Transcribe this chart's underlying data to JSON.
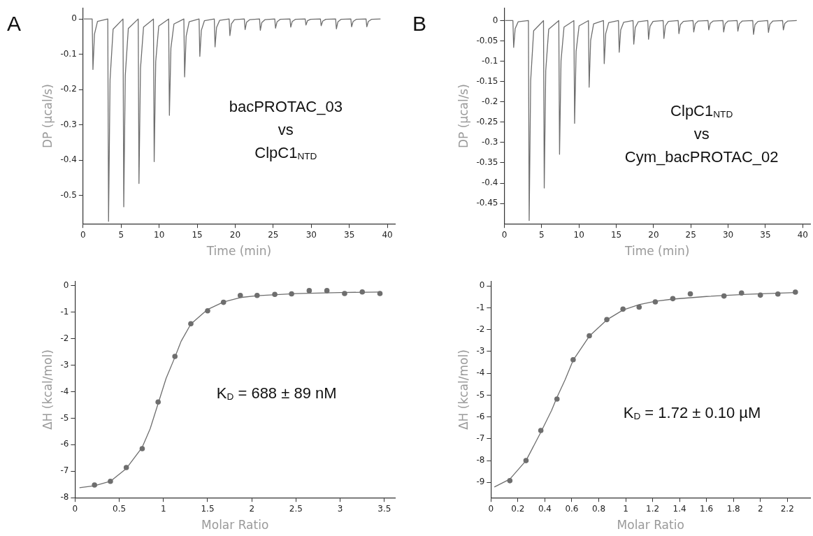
{
  "chart_data": [
    {
      "type": "line",
      "xlabel": "Time (min)",
      "ylabel": "DP (µcal/s)",
      "xlim": [
        0,
        41
      ],
      "ylim": [
        -0.58,
        0.03
      ],
      "xticks": [
        0,
        5,
        10,
        15,
        20,
        25,
        30,
        35,
        40
      ],
      "yticks": [
        -0.5,
        -0.4,
        -0.3,
        -0.2,
        -0.1,
        0
      ],
      "grid": false,
      "legend": false,
      "annotations": [
        "A",
        "bacPROTAC_03\nvs\nClpC1$_{NTD}$"
      ],
      "series": [
        {
          "color": "#6e6e6e",
          "x": [
            0.1,
            1.2,
            1.3,
            1.5,
            1.9,
            3.25,
            3.35,
            3.55,
            3.95,
            5.25,
            5.35,
            5.55,
            5.95,
            7.25,
            7.35,
            7.55,
            7.95,
            9.25,
            9.35,
            9.55,
            9.95,
            11.25,
            11.35,
            11.55,
            11.95,
            13.25,
            13.35,
            13.55,
            13.95,
            15.25,
            15.35,
            15.55,
            15.95,
            17.25,
            17.35,
            17.55,
            17.95,
            19.2,
            19.3,
            19.5,
            19.9,
            21.2,
            21.3,
            21.5,
            21.9,
            23.2,
            23.3,
            23.5,
            23.9,
            25.2,
            25.3,
            25.5,
            25.9,
            27.2,
            27.3,
            27.5,
            27.9,
            29.2,
            29.3,
            29.5,
            29.9,
            31.2,
            31.3,
            31.5,
            31.9,
            33.2,
            33.3,
            33.5,
            33.9,
            35.2,
            35.3,
            35.5,
            35.9,
            37.2,
            37.3,
            37.5,
            37.9,
            39.1
          ],
          "values": [
            0,
            0,
            -0.143,
            -0.043,
            -0.007,
            0,
            -0.573,
            -0.172,
            -0.029,
            0,
            -0.532,
            -0.16,
            -0.027,
            0,
            -0.466,
            -0.14,
            -0.023,
            0,
            -0.404,
            -0.121,
            -0.02,
            0,
            -0.273,
            -0.082,
            -0.014,
            0,
            -0.164,
            -0.049,
            -0.008,
            0,
            -0.106,
            -0.032,
            -0.005,
            0,
            -0.079,
            -0.024,
            -0.004,
            0,
            -0.047,
            -0.014,
            -0.002,
            0,
            -0.03,
            -0.009,
            -0.002,
            0,
            -0.032,
            -0.01,
            -0.002,
            0,
            -0.026,
            -0.008,
            -0.001,
            0,
            -0.023,
            -0.007,
            -0.001,
            0,
            -0.017,
            -0.005,
            -0.001,
            0,
            -0.019,
            -0.006,
            -0.001,
            0,
            -0.028,
            -0.008,
            -0.001,
            0,
            -0.022,
            -0.007,
            -0.001,
            0,
            -0.022,
            -0.007,
            -0.001,
            0
          ]
        }
      ]
    },
    {
      "type": "line",
      "xlabel": "Time (min)",
      "ylabel": "DP (µcal/s)",
      "xlim": [
        0,
        41
      ],
      "ylim": [
        -0.5,
        0.03
      ],
      "xticks": [
        0,
        5,
        10,
        15,
        20,
        25,
        30,
        35,
        40
      ],
      "yticks": [
        -0.45,
        -0.4,
        -0.35,
        -0.3,
        -0.25,
        -0.2,
        -0.15,
        -0.1,
        -0.05,
        0
      ],
      "grid": false,
      "legend": false,
      "annotations": [
        "B",
        "ClpC1$_{NTD}$\nvs\nCym_bacPROTAC_02"
      ],
      "series": [
        {
          "color": "#6e6e6e",
          "x": [
            0.1,
            1.15,
            1.25,
            1.45,
            1.85,
            3.23,
            3.33,
            3.53,
            3.93,
            5.25,
            5.35,
            5.55,
            5.95,
            7.3,
            7.4,
            7.6,
            8.0,
            9.32,
            9.42,
            9.62,
            10.02,
            11.27,
            11.37,
            11.57,
            11.97,
            13.29,
            13.39,
            13.59,
            13.99,
            15.3,
            15.4,
            15.6,
            16.0,
            17.25,
            17.35,
            17.55,
            17.95,
            19.23,
            19.33,
            19.53,
            19.93,
            21.29,
            21.39,
            21.59,
            21.99,
            23.3,
            23.4,
            23.6,
            24.0,
            25.29,
            25.39,
            25.59,
            25.99,
            27.3,
            27.4,
            27.6,
            28.0,
            29.3,
            29.4,
            29.6,
            30.0,
            31.2,
            31.3,
            31.5,
            31.9,
            33.3,
            33.4,
            33.6,
            34.0,
            35.3,
            35.4,
            35.6,
            36.0,
            37.3,
            37.4,
            37.6,
            38.0,
            39.2
          ],
          "values": [
            0,
            0,
            -0.066,
            -0.02,
            -0.003,
            0,
            -0.492,
            -0.148,
            -0.025,
            0,
            -0.412,
            -0.124,
            -0.021,
            0,
            -0.329,
            -0.099,
            -0.016,
            0,
            -0.253,
            -0.076,
            -0.013,
            0,
            -0.164,
            -0.049,
            -0.008,
            0,
            -0.106,
            -0.032,
            -0.005,
            0,
            -0.078,
            -0.023,
            -0.004,
            0,
            -0.058,
            -0.017,
            -0.003,
            0,
            -0.046,
            -0.014,
            -0.002,
            0,
            -0.044,
            -0.013,
            -0.002,
            0,
            -0.032,
            -0.01,
            -0.002,
            0,
            -0.028,
            -0.008,
            -0.001,
            0,
            -0.023,
            -0.007,
            -0.001,
            0,
            -0.028,
            -0.008,
            -0.001,
            0,
            -0.026,
            -0.008,
            -0.001,
            0,
            -0.034,
            -0.01,
            -0.002,
            0,
            -0.029,
            -0.009,
            -0.001,
            0,
            -0.023,
            -0.007,
            -0.001,
            0
          ]
        }
      ]
    },
    {
      "type": "scatter",
      "xlabel": "Molar Ratio",
      "ylabel": "ΔH (kcal/mol)",
      "xlim": [
        0,
        3.62
      ],
      "ylim": [
        -8,
        0.15
      ],
      "xticks": [
        0,
        0.5,
        1,
        1.5,
        2,
        2.5,
        3,
        3.5
      ],
      "yticks": [
        -8,
        -7,
        -6,
        -5,
        -4,
        -3,
        -2,
        -1,
        0
      ],
      "grid": false,
      "legend": false,
      "annotations": [
        "K$_{D}$ = 688 ± 89 nM"
      ],
      "series": [
        {
          "marker": "circle",
          "color": "#6e6e6e",
          "x": [
            0.22,
            0.4,
            0.58,
            0.76,
            0.94,
            1.13,
            1.31,
            1.5,
            1.68,
            1.87,
            2.06,
            2.26,
            2.45,
            2.65,
            2.85,
            3.05,
            3.25,
            3.45
          ],
          "values": [
            -7.52,
            -7.38,
            -6.86,
            -6.15,
            -4.39,
            -2.67,
            -1.44,
            -0.95,
            -0.63,
            -0.37,
            -0.37,
            -0.33,
            -0.31,
            -0.19,
            -0.19,
            -0.3,
            -0.24,
            -0.3
          ]
        },
        {
          "type": "line",
          "marker": "none",
          "color": "#6e6e6e",
          "x": [
            0.05,
            0.22,
            0.4,
            0.58,
            0.76,
            0.85,
            0.94,
            1.03,
            1.13,
            1.2,
            1.31,
            1.5,
            1.68,
            1.87,
            2.06,
            2.5,
            3.0,
            3.47
          ],
          "values": [
            -7.62,
            -7.55,
            -7.38,
            -6.9,
            -6.1,
            -5.4,
            -4.45,
            -3.5,
            -2.7,
            -2.1,
            -1.45,
            -0.9,
            -0.62,
            -0.45,
            -0.38,
            -0.3,
            -0.26,
            -0.24
          ]
        }
      ]
    },
    {
      "type": "scatter",
      "xlabel": "Molar Ratio",
      "ylabel": "ΔH (kcal/mol)",
      "xlim": [
        0,
        2.37
      ],
      "ylim": [
        -9.7,
        0.2
      ],
      "xticks": [
        0,
        0.2,
        0.4,
        0.6,
        0.8,
        1,
        1.2,
        1.4,
        1.6,
        1.8,
        2,
        2.2
      ],
      "yticks": [
        -9,
        -8,
        -7,
        -6,
        -5,
        -4,
        -3,
        -2,
        -1,
        0
      ],
      "grid": false,
      "legend": false,
      "annotations": [
        "K$_{D}$ = 1.72 ± 0.10 µM"
      ],
      "series": [
        {
          "marker": "circle",
          "color": "#6e6e6e",
          "x": [
            0.14,
            0.26,
            0.37,
            0.49,
            0.61,
            0.73,
            0.86,
            0.98,
            1.1,
            1.22,
            1.35,
            1.48,
            1.73,
            1.86,
            2.0,
            2.13,
            2.26
          ],
          "values": [
            -8.92,
            -8.0,
            -6.62,
            -5.18,
            -3.38,
            -2.28,
            -1.54,
            -1.06,
            -0.97,
            -0.73,
            -0.58,
            -0.36,
            -0.46,
            -0.32,
            -0.42,
            -0.37,
            -0.28
          ]
        },
        {
          "type": "line",
          "marker": "none",
          "color": "#6e6e6e",
          "x": [
            0.025,
            0.14,
            0.26,
            0.37,
            0.45,
            0.49,
            0.55,
            0.61,
            0.73,
            0.86,
            0.98,
            1.1,
            1.22,
            1.35,
            1.6,
            1.9,
            2.26
          ],
          "values": [
            -9.21,
            -8.85,
            -8.0,
            -6.7,
            -5.7,
            -5.1,
            -4.3,
            -3.4,
            -2.3,
            -1.55,
            -1.1,
            -0.85,
            -0.7,
            -0.6,
            -0.48,
            -0.38,
            -0.3
          ]
        }
      ]
    }
  ]
}
